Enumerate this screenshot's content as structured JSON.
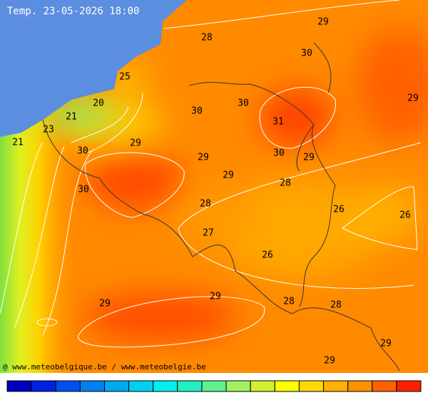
{
  "title": "Temp. 23-05-2026 18:00",
  "credit": "@ www.meteobelgique.be / www.meteobelgie.be",
  "labels": [
    28,
    29,
    30,
    29,
    25,
    20,
    21,
    23,
    21,
    30,
    30,
    31,
    30,
    29,
    29,
    30,
    29,
    29,
    28,
    30,
    28,
    26,
    26,
    27,
    26,
    29,
    29,
    28,
    28,
    29,
    29
  ]
}
